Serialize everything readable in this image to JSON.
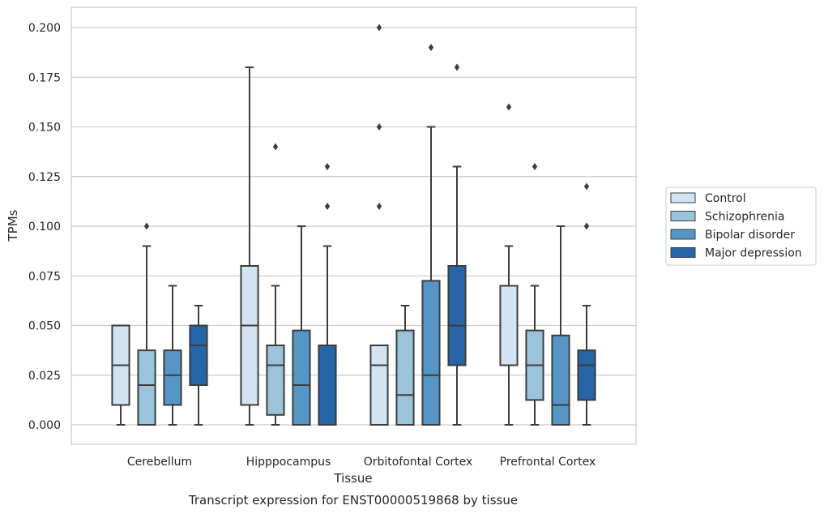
{
  "chart_data": {
    "type": "boxplot",
    "title": "Transcript expression for ENST00000519868 by tissue",
    "xlabel": "Tissue",
    "ylabel": "TPMs",
    "ylim": [
      -0.02,
      0.21
    ],
    "yticks": [
      "0.000",
      "0.025",
      "0.050",
      "0.075",
      "0.100",
      "0.125",
      "0.150",
      "0.175",
      "0.200"
    ],
    "ytick_values": [
      0,
      0.025,
      0.05,
      0.075,
      0.1,
      0.125,
      0.15,
      0.175,
      0.2
    ],
    "grid": "horizontal",
    "legend_position": "outside-right",
    "categories": [
      "Cerebellum",
      "Hipppocampus",
      "Orbitofontal Cortex",
      "Prefrontal Cortex"
    ],
    "series": [
      {
        "name": "Control",
        "color": "#d4e3f1",
        "boxes": [
          {
            "whislo": 0.0,
            "q1": 0.01,
            "med": 0.03,
            "q3": 0.05,
            "whishi": 0.05,
            "fliers": []
          },
          {
            "whislo": 0.0,
            "q1": 0.01,
            "med": 0.05,
            "q3": 0.08,
            "whishi": 0.18,
            "fliers": []
          },
          {
            "whislo": 0.0,
            "q1": 0.0,
            "med": 0.03,
            "q3": 0.04,
            "whishi": 0.04,
            "fliers": [
              0.11,
              0.15,
              0.2
            ]
          },
          {
            "whislo": 0.0,
            "q1": 0.03,
            "med": 0.03,
            "q3": 0.07,
            "whishi": 0.09,
            "fliers": [
              0.16
            ]
          }
        ]
      },
      {
        "name": "Schizophrenia",
        "color": "#9cc3dc",
        "boxes": [
          {
            "whislo": 0.0,
            "q1": 0.0,
            "med": 0.02,
            "q3": 0.0375,
            "whishi": 0.09,
            "fliers": [
              0.1
            ]
          },
          {
            "whislo": 0.0,
            "q1": 0.005,
            "med": 0.03,
            "q3": 0.04,
            "whishi": 0.07,
            "fliers": [
              0.14
            ]
          },
          {
            "whislo": 0.0,
            "q1": 0.0,
            "med": 0.015,
            "q3": 0.0475,
            "whishi": 0.06,
            "fliers": []
          },
          {
            "whislo": 0.0,
            "q1": 0.0125,
            "med": 0.03,
            "q3": 0.0475,
            "whishi": 0.07,
            "fliers": [
              0.13
            ]
          }
        ]
      },
      {
        "name": "Bipolar disorder",
        "color": "#5596c6",
        "boxes": [
          {
            "whislo": 0.0,
            "q1": 0.01,
            "med": 0.025,
            "q3": 0.0375,
            "whishi": 0.07,
            "fliers": []
          },
          {
            "whislo": 0.0,
            "q1": 0.0,
            "med": 0.02,
            "q3": 0.0475,
            "whishi": 0.1,
            "fliers": []
          },
          {
            "whislo": 0.0,
            "q1": 0.0,
            "med": 0.025,
            "q3": 0.0725,
            "whishi": 0.15,
            "fliers": [
              0.19
            ]
          },
          {
            "whislo": 0.0,
            "q1": 0.0,
            "med": 0.01,
            "q3": 0.045,
            "whishi": 0.1,
            "fliers": []
          }
        ]
      },
      {
        "name": "Major depression",
        "color": "#2565a8",
        "boxes": [
          {
            "whislo": 0.0,
            "q1": 0.02,
            "med": 0.04,
            "q3": 0.05,
            "whishi": 0.06,
            "fliers": []
          },
          {
            "whislo": 0.0,
            "q1": 0.0,
            "med": 0.0,
            "q3": 0.04,
            "whishi": 0.09,
            "fliers": [
              0.11,
              0.13
            ]
          },
          {
            "whislo": 0.0,
            "q1": 0.03,
            "med": 0.05,
            "q3": 0.08,
            "whishi": 0.13,
            "fliers": [
              0.18
            ]
          },
          {
            "whislo": 0.0,
            "q1": 0.0125,
            "med": 0.03,
            "q3": 0.0375,
            "whishi": 0.06,
            "fliers": [
              0.1,
              0.12
            ]
          }
        ]
      }
    ]
  }
}
